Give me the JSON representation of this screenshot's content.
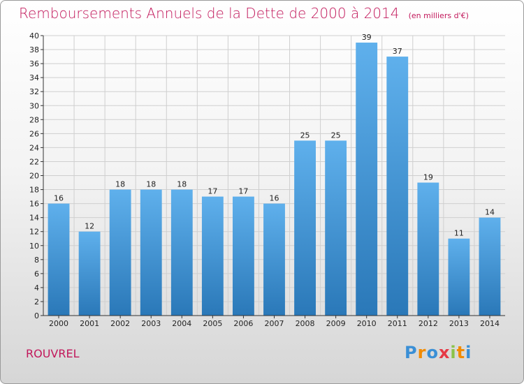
{
  "header": {
    "title": "Remboursements Annuels de la Dette de 2000 à 2014",
    "subtitle": "(en milliers d'€)"
  },
  "footer": {
    "place": "ROUVREL",
    "logo_letters": [
      "P",
      "r",
      "o",
      "x",
      "i",
      "t",
      "i"
    ],
    "logo_colors": [
      "#3a8fd6",
      "#f28b00",
      "#3a8fd6",
      "#e63946",
      "#8bc34a",
      "#f28b00",
      "#3a8fd6"
    ]
  },
  "colors": {
    "title": "#c2185b",
    "bar_top": "#5fb0ec",
    "bar_bottom": "#2a78b8",
    "grid": "#cfcfcf"
  },
  "chart_data": {
    "type": "bar",
    "title": "Remboursements Annuels de la Dette de 2000 à 2014",
    "subtitle": "(en milliers d'€)",
    "xlabel": "",
    "ylabel": "",
    "categories": [
      "2000",
      "2001",
      "2002",
      "2003",
      "2004",
      "2005",
      "2006",
      "2007",
      "2008",
      "2009",
      "2010",
      "2011",
      "2012",
      "2013",
      "2014"
    ],
    "values": [
      16,
      12,
      18,
      18,
      18,
      17,
      17,
      16,
      25,
      25,
      39,
      37,
      19,
      11,
      14
    ],
    "ylim": [
      0,
      40
    ],
    "ytick_step": 2,
    "grid": true
  }
}
